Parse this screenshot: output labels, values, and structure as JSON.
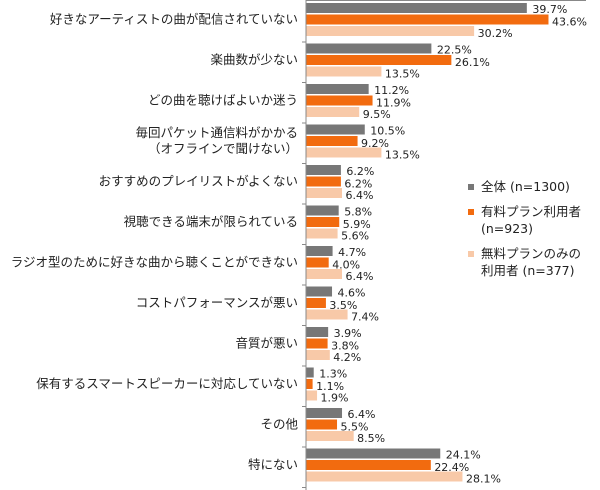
{
  "chart_data": {
    "type": "bar",
    "orientation": "horizontal",
    "categories": [
      "好きなアーティストの曲が配信されていない",
      "楽曲数が少ない",
      "どの曲を聴けばよいか迷う",
      "毎回パケット通信料がかかる\n（オフラインで聞けない）",
      "おすすめのプレイリストがよくない",
      "視聴できる端末が限られている",
      "ラジオ型のために好きな曲から聴くことができない",
      "コストパフォーマンスが悪い",
      "音質が悪い",
      "保有するスマートスピーカーに対応していない",
      "その他",
      "特にない"
    ],
    "series": [
      {
        "name": "全体 (n=1300)",
        "color": "#777777",
        "values": [
          39.7,
          22.5,
          11.2,
          10.5,
          6.2,
          5.8,
          4.7,
          4.6,
          3.9,
          1.3,
          6.4,
          24.1
        ]
      },
      {
        "name": "有料プラン利用者\n(n=923)",
        "color": "#f26b0f",
        "values": [
          43.6,
          26.1,
          11.9,
          9.2,
          6.2,
          5.9,
          4.0,
          3.5,
          3.8,
          1.1,
          5.5,
          22.4
        ]
      },
      {
        "name": "無料プランのみの\n利用者 (n=377)",
        "color": "#f8c9a8",
        "values": [
          30.2,
          13.5,
          9.5,
          13.5,
          6.4,
          5.6,
          6.4,
          7.4,
          4.2,
          1.9,
          8.5,
          28.1
        ]
      }
    ],
    "value_format": "%",
    "grid": false,
    "legend_position": "right"
  }
}
